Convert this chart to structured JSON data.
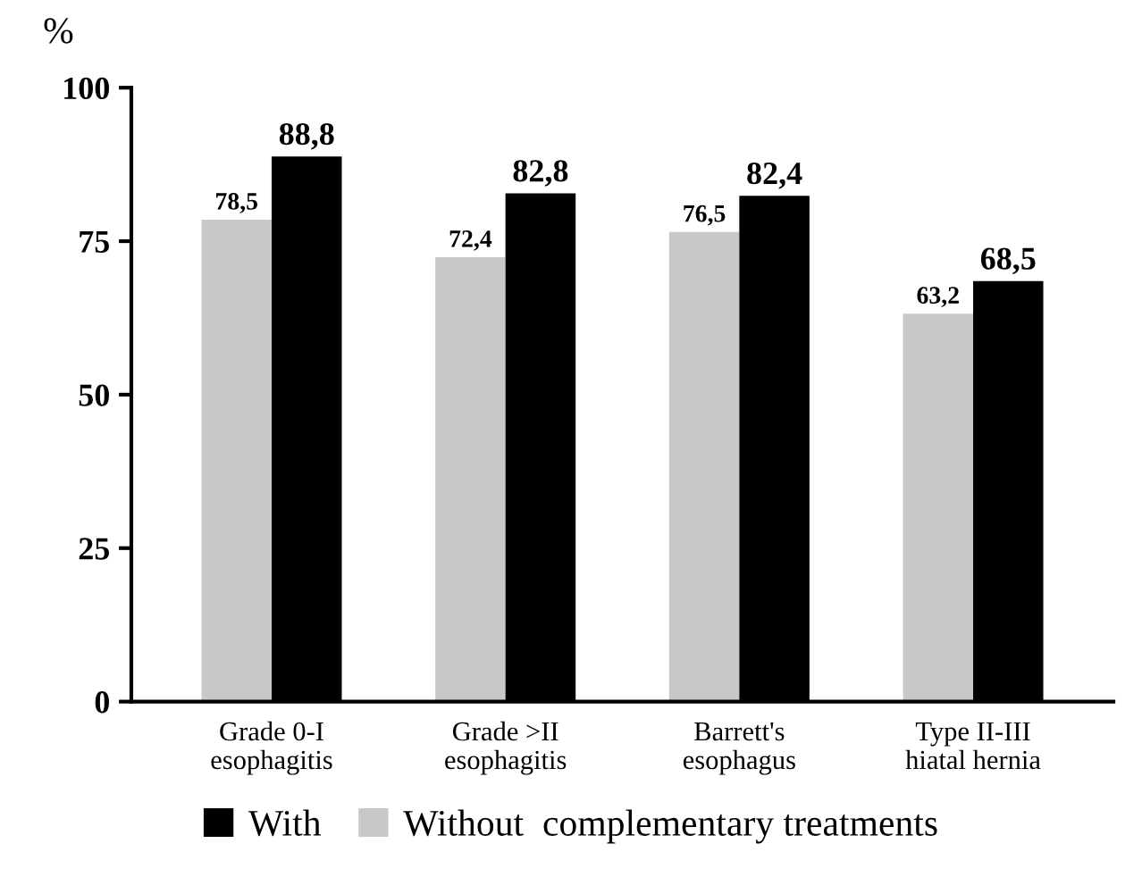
{
  "chart_data": {
    "type": "bar",
    "ylabel": "%",
    "categories": [
      "Grade 0-I\nesophagitis",
      "Grade >II\nesophagitis",
      "Barrett's\nesophagus",
      "Type II-III\nhiatal hernia"
    ],
    "series": [
      {
        "name": "Without  complementary treatments",
        "color": "#c8c8c8",
        "values": [
          78.5,
          72.4,
          76.5,
          63.2
        ],
        "value_labels": [
          "78,5",
          "72,4",
          "76,5",
          "63,2"
        ]
      },
      {
        "name": "With",
        "color": "#000000",
        "values": [
          88.8,
          82.8,
          82.4,
          68.5
        ],
        "value_labels": [
          "88,8",
          "82,8",
          "82,4",
          "68,5"
        ]
      }
    ],
    "ylim": [
      0,
      100
    ],
    "yticks": [
      0,
      25,
      50,
      75,
      100
    ],
    "grid": false,
    "legend": "bottom"
  }
}
